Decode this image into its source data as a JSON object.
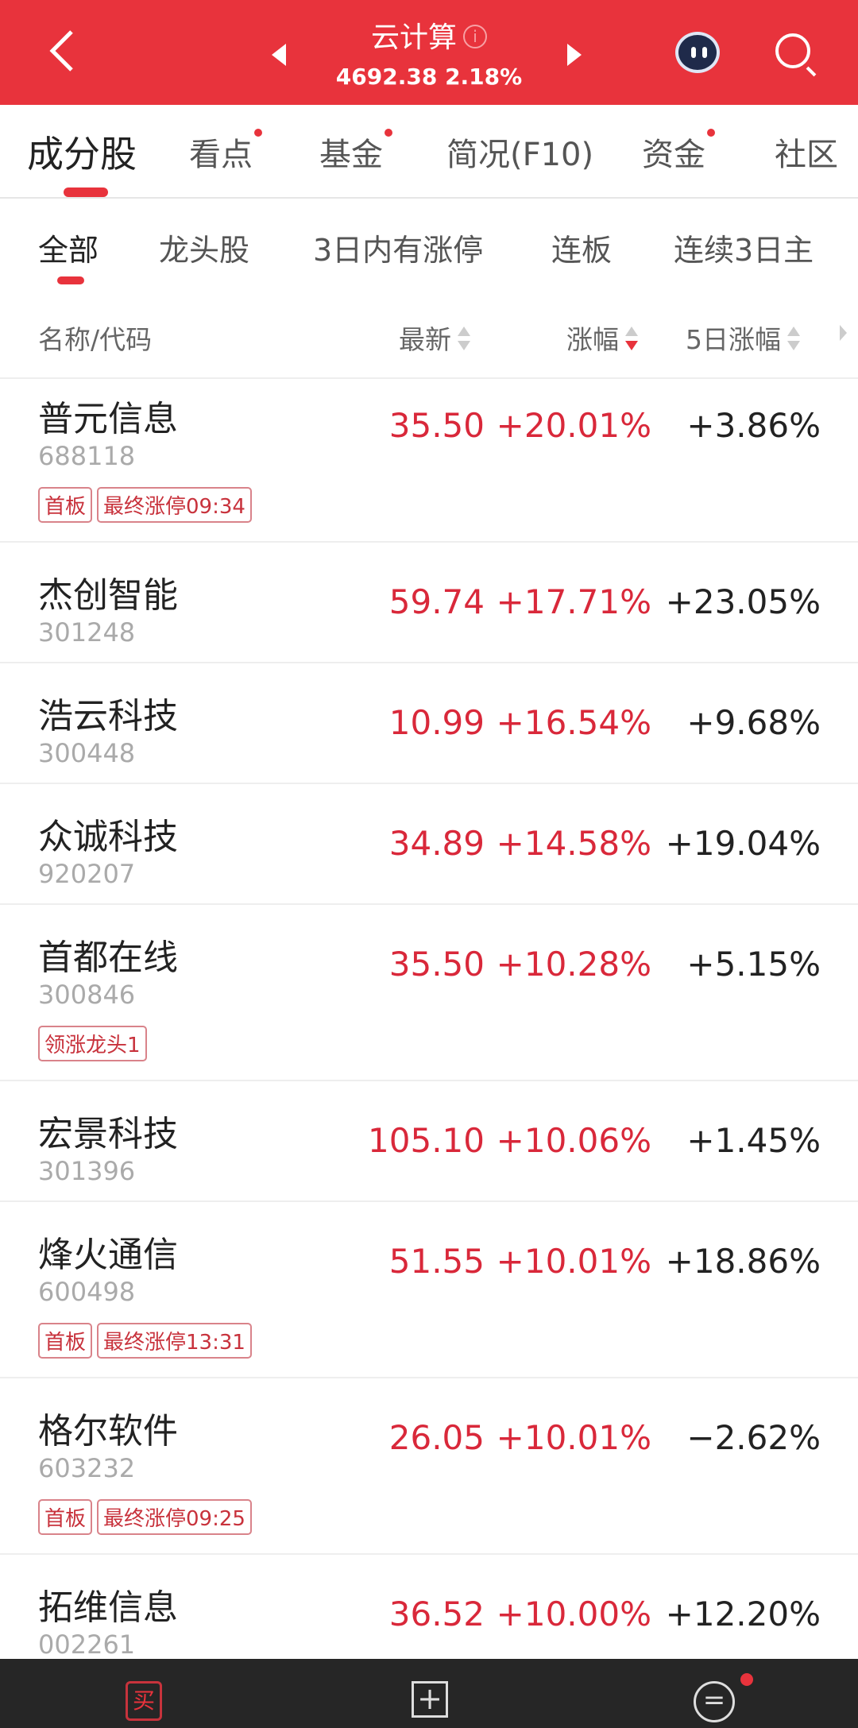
{
  "header": {
    "title": "云计算",
    "index_value": "4692.38",
    "index_change": "2.18%",
    "info_icon": "i",
    "accent": "#e8333c"
  },
  "tabs": [
    {
      "label": "成分股",
      "active": true
    },
    {
      "label": "看点",
      "dot": true
    },
    {
      "label": "基金",
      "dot": true
    },
    {
      "label": "简况(F10)"
    },
    {
      "label": "资金",
      "dot": true
    },
    {
      "label": "社区"
    }
  ],
  "filters": [
    {
      "label": "全部",
      "active": true
    },
    {
      "label": "龙头股"
    },
    {
      "label": "3日内有涨停"
    },
    {
      "label": "连板"
    },
    {
      "label": "连续3日主"
    }
  ],
  "columns": {
    "name": "名称/代码",
    "price": "最新",
    "change": "涨幅",
    "change5d": "5日涨幅",
    "sorted": "涨幅",
    "sort_direction": "descending"
  },
  "stocks": [
    {
      "name": "普元信息",
      "code": "688118",
      "price": "35.50",
      "change": "+20.01%",
      "change5d": "+3.86%",
      "tags": [
        "首板",
        "最终涨停09:34"
      ]
    },
    {
      "name": "杰创智能",
      "code": "301248",
      "price": "59.74",
      "change": "+17.71%",
      "change5d": "+23.05%",
      "tags": []
    },
    {
      "name": "浩云科技",
      "code": "300448",
      "price": "10.99",
      "change": "+16.54%",
      "change5d": "+9.68%",
      "tags": []
    },
    {
      "name": "众诚科技",
      "code": "920207",
      "price": "34.89",
      "change": "+14.58%",
      "change5d": "+19.04%",
      "tags": []
    },
    {
      "name": "首都在线",
      "code": "300846",
      "price": "35.50",
      "change": "+10.28%",
      "change5d": "+5.15%",
      "tags": [
        "领涨龙头1"
      ]
    },
    {
      "name": "宏景科技",
      "code": "301396",
      "price": "105.10",
      "change": "+10.06%",
      "change5d": "+1.45%",
      "tags": []
    },
    {
      "name": "烽火通信",
      "code": "600498",
      "price": "51.55",
      "change": "+10.01%",
      "change5d": "+18.86%",
      "tags": [
        "首板",
        "最终涨停13:31"
      ]
    },
    {
      "name": "格尔软件",
      "code": "603232",
      "price": "26.05",
      "change": "+10.01%",
      "change5d": "−2.62%",
      "tags": [
        "首板",
        "最终涨停09:25"
      ]
    },
    {
      "name": "拓维信息",
      "code": "002261",
      "price": "36.52",
      "change": "+10.00%",
      "change5d": "+12.20%",
      "tags": []
    }
  ],
  "bottom_bar": {
    "buy_icon": "买",
    "add_icon": "+",
    "menu_icon": "="
  }
}
